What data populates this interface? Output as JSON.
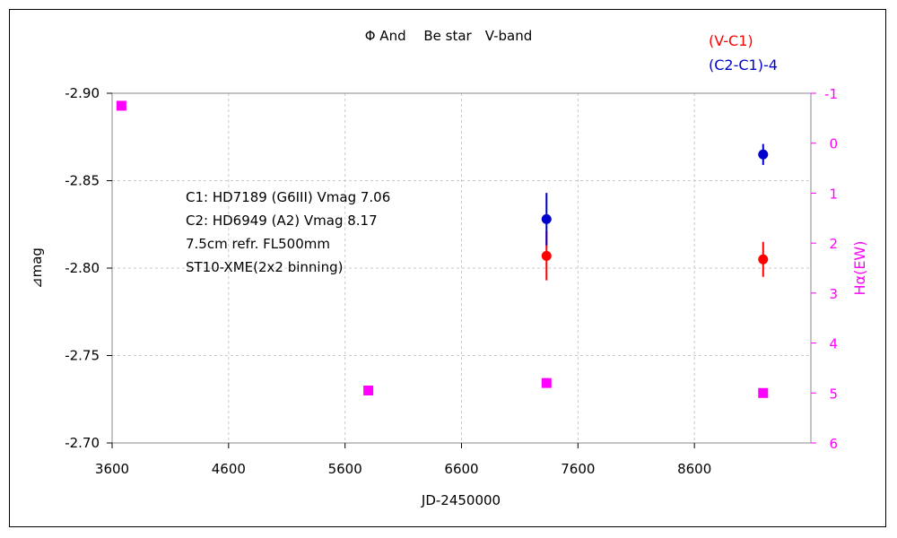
{
  "chart_data": {
    "type": "scatter",
    "title": "Φ And　 Be star　V-band",
    "xlabel": "JD-2450000",
    "ylabel": "⊿mag",
    "y2label": "Hα(EW)",
    "xlim": [
      3600,
      9600
    ],
    "ylim": [
      -2.9,
      -2.7
    ],
    "y_reversed": true,
    "y2lim": [
      -1,
      6
    ],
    "y2_reversed": true,
    "x_ticks": [
      "3600",
      "4600",
      "5600",
      "6600",
      "7600",
      "8600"
    ],
    "x_tick_values": [
      3600,
      4600,
      5600,
      6600,
      7600,
      8600
    ],
    "y_ticks": [
      "-2.90",
      "-2.85",
      "-2.80",
      "-2.75",
      "-2.70"
    ],
    "y_tick_values": [
      -2.9,
      -2.85,
      -2.8,
      -2.75,
      -2.7
    ],
    "y2_ticks": [
      "-1",
      "0",
      "1",
      "2",
      "3",
      "4",
      "5",
      "6"
    ],
    "y2_tick_values": [
      -1,
      0,
      1,
      2,
      3,
      4,
      5,
      6
    ],
    "grid": true,
    "annotations": [
      "C1: HD7189 (G6III) Vmag 7.06",
      "C2: HD6949 (A2) Vmag 8.17",
      "7.5cm refr. FL500mm",
      "ST10-XME(2x2 binning)"
    ],
    "legend_position": "top-right",
    "series": [
      {
        "name": "(V-C1)",
        "axis": "left",
        "color": "#ff0000",
        "points": [
          {
            "x": 7330,
            "y": -2.807,
            "yerr": 0.014
          },
          {
            "x": 9190,
            "y": -2.805,
            "yerr": 0.01
          }
        ]
      },
      {
        "name": "(C2-C1)-4",
        "axis": "left",
        "color": "#0000cc",
        "points": [
          {
            "x": 7330,
            "y": -2.828,
            "yerr": 0.015
          },
          {
            "x": 9190,
            "y": -2.865,
            "yerr": 0.006
          }
        ]
      },
      {
        "name": "",
        "axis": "right",
        "color": "#ff00ff",
        "marker": "square",
        "points": [
          {
            "x": 3680,
            "y": -0.75
          },
          {
            "x": 5800,
            "y": 4.95
          },
          {
            "x": 7330,
            "y": 4.8
          },
          {
            "x": 9190,
            "y": 5.0
          }
        ]
      }
    ]
  }
}
